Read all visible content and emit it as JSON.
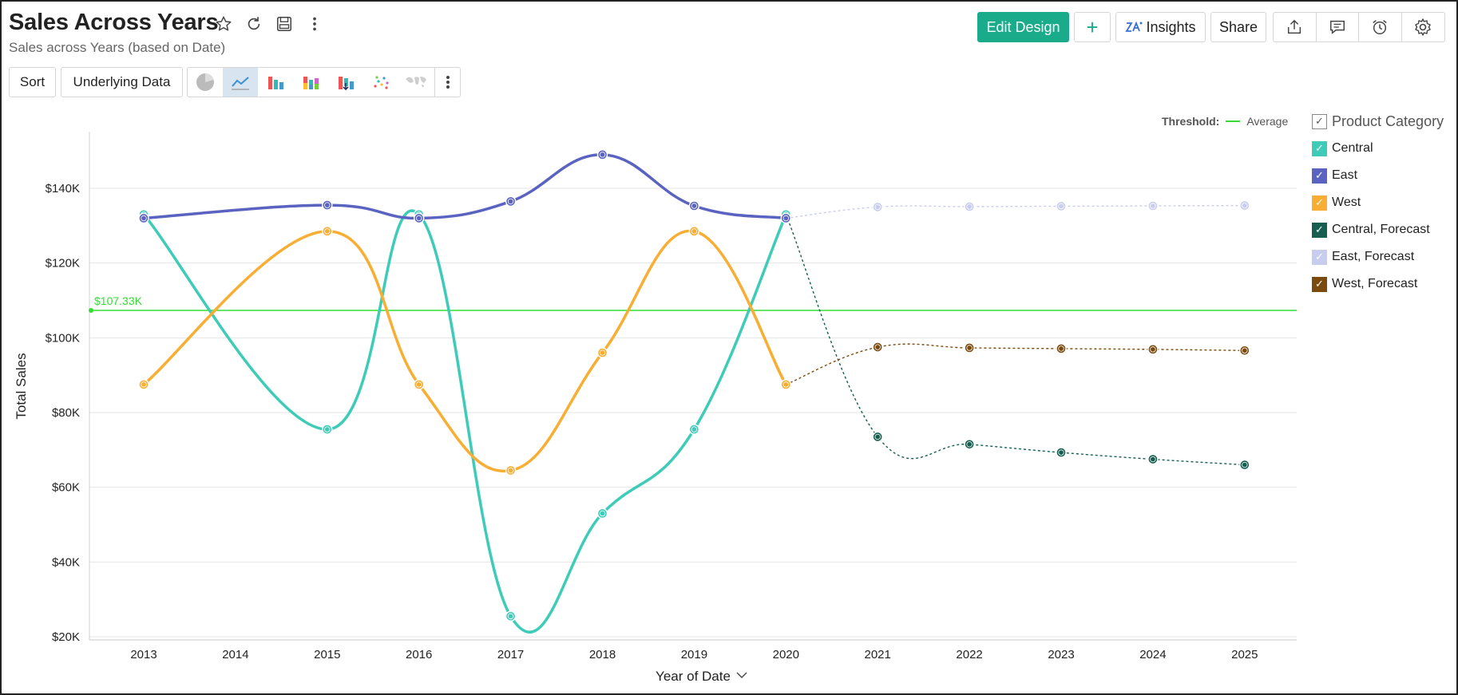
{
  "header": {
    "title": "Sales Across Years",
    "subtitle": "Sales across Years (based on Date)"
  },
  "title_icons": [
    "star-icon",
    "refresh-icon",
    "save-icon",
    "more-vertical-icon"
  ],
  "toolbar": {
    "sort_label": "Sort",
    "underlying_label": "Underlying Data",
    "chart_types": [
      "pie-chart-icon",
      "line-chart-icon",
      "bar-chart-icon",
      "stacked-bar-icon",
      "waterfall-icon",
      "scatter-icon",
      "map-icon"
    ],
    "active_chart_type": "line-chart-icon"
  },
  "top_actions": {
    "edit_design": "Edit Design",
    "add": "+",
    "insights": "Insights",
    "share": "Share"
  },
  "threshold": {
    "label": "Threshold:",
    "name": "Average",
    "value_label": "$107.33K",
    "value": 107330,
    "color": "#33dd33"
  },
  "legend": {
    "title": "Product Category",
    "items": [
      {
        "label": "Central",
        "color": "#3ecbb8"
      },
      {
        "label": "East",
        "color": "#5b63c0"
      },
      {
        "label": "West",
        "color": "#f8ad33"
      },
      {
        "label": "Central, Forecast",
        "color": "#155e50"
      },
      {
        "label": "East, Forecast",
        "color": "#c8cdef"
      },
      {
        "label": "West, Forecast",
        "color": "#7a4a0f"
      }
    ]
  },
  "chart_data": {
    "type": "line",
    "xlabel": "Year of Date",
    "ylabel": "Total Sales",
    "categories": [
      "2013",
      "2014",
      "2015",
      "2016",
      "2017",
      "2018",
      "2019",
      "2020",
      "2021",
      "2022",
      "2023",
      "2024",
      "2025"
    ],
    "y_ticks": [
      {
        "value": 20000,
        "label": "$20K"
      },
      {
        "value": 40000,
        "label": "$40K"
      },
      {
        "value": 60000,
        "label": "$60K"
      },
      {
        "value": 80000,
        "label": "$80K"
      },
      {
        "value": 100000,
        "label": "$100K"
      },
      {
        "value": 120000,
        "label": "$120K"
      },
      {
        "value": 140000,
        "label": "$140K"
      }
    ],
    "ylim": [
      20000,
      155000
    ],
    "series": [
      {
        "name": "Central",
        "color": "#3ecbb8",
        "style": "solid",
        "values": [
          133000,
          null,
          75500,
          133000,
          25500,
          53000,
          75500,
          133000,
          null,
          null,
          null,
          null,
          null
        ]
      },
      {
        "name": "East",
        "color": "#5b63c0",
        "style": "solid",
        "values": [
          132000,
          null,
          135500,
          132000,
          136500,
          149000,
          135300,
          132000,
          null,
          null,
          null,
          null,
          null
        ]
      },
      {
        "name": "West",
        "color": "#f8ad33",
        "style": "solid",
        "values": [
          87500,
          null,
          128500,
          87500,
          64500,
          96000,
          128500,
          87500,
          null,
          null,
          null,
          null,
          null
        ]
      },
      {
        "name": "Central, Forecast",
        "color": "#155e50",
        "style": "dashed",
        "values": [
          null,
          null,
          null,
          null,
          null,
          null,
          null,
          133000,
          73500,
          71500,
          69300,
          67500,
          66000
        ]
      },
      {
        "name": "East, Forecast",
        "color": "#c8cdef",
        "style": "dashed",
        "values": [
          null,
          null,
          null,
          null,
          null,
          null,
          null,
          132000,
          135000,
          135100,
          135200,
          135300,
          135400
        ]
      },
      {
        "name": "West, Forecast",
        "color": "#7a4a0f",
        "style": "dashed",
        "values": [
          null,
          null,
          null,
          null,
          null,
          null,
          null,
          87500,
          97500,
          97300,
          97100,
          96900,
          96600
        ]
      }
    ],
    "threshold": 107330,
    "grid": true,
    "legend_position": "right"
  }
}
